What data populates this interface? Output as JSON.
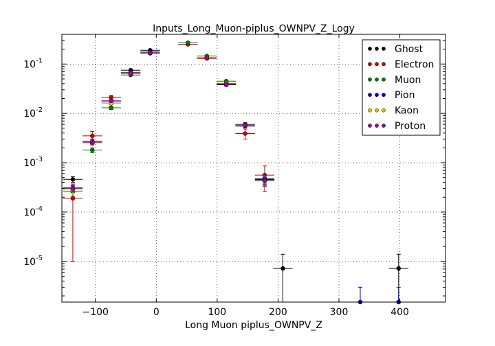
{
  "chart_data": {
    "type": "scatter",
    "title": "Inputs_Long_Muon-piplus_OWNPV_Z_Logy",
    "xlabel": "Long Muon piplus_OWNPV_Z",
    "ylabel": "",
    "xlim": [
      -155,
      475
    ],
    "ylim": [
      1.5e-06,
      0.4
    ],
    "yscale": "log",
    "grid": true,
    "legend_position": "top-right",
    "x_ticks": [
      -100,
      0,
      100,
      200,
      300,
      400
    ],
    "x_tick_labels": [
      "−100",
      "0",
      "100",
      "200",
      "300",
      "400"
    ],
    "y_ticks": [
      {
        "value": 0.1,
        "base": "10",
        "exp": "-1"
      },
      {
        "value": 0.01,
        "base": "10",
        "exp": "-2"
      },
      {
        "value": 0.001,
        "base": "10",
        "exp": "-3"
      },
      {
        "value": 0.0001,
        "base": "10",
        "exp": "-4"
      },
      {
        "value": 1e-05,
        "base": "10",
        "exp": "-5"
      }
    ],
    "bin_half_width": 16,
    "series": [
      {
        "name": "Ghost",
        "color": "#000000",
        "points": [
          {
            "x": -137,
            "y": 0.00046,
            "yerr": 6e-05
          },
          {
            "x": -42,
            "y": 0.075,
            "yerr": 0.003
          },
          {
            "x": -10,
            "y": 0.19,
            "yerr": 0.005
          },
          {
            "x": 115,
            "y": 0.038,
            "yerr": 0.002
          },
          {
            "x": 178,
            "y": 0.00045,
            "yerr": 0.0001
          },
          {
            "x": 208,
            "y": 7.2e-06,
            "yerr": 6.8e-06
          },
          {
            "x": 398,
            "y": 7.2e-06,
            "yerr": 6.8e-06
          }
        ]
      },
      {
        "name": "Electron",
        "color": "#cc0000",
        "points": [
          {
            "x": -137,
            "y": 0.00019,
            "yerr": 0.00018
          },
          {
            "x": -105,
            "y": 0.0035,
            "yerr": 0.0008
          },
          {
            "x": -74,
            "y": 0.021,
            "yerr": 0.002
          },
          {
            "x": 52,
            "y": 0.25,
            "yerr": 0.01
          },
          {
            "x": 83,
            "y": 0.13,
            "yerr": 0.006
          },
          {
            "x": 146,
            "y": 0.0039,
            "yerr": 0.0009
          },
          {
            "x": 178,
            "y": 0.00056,
            "yerr": 0.0003
          }
        ]
      },
      {
        "name": "Muon",
        "color": "#007a00",
        "points": [
          {
            "x": -137,
            "y": 0.00026,
            "yerr": 5e-05
          },
          {
            "x": -105,
            "y": 0.0018,
            "yerr": 0.0002
          },
          {
            "x": -74,
            "y": 0.013,
            "yerr": 0.001
          },
          {
            "x": -42,
            "y": 0.06,
            "yerr": 0.002
          },
          {
            "x": -10,
            "y": 0.165,
            "yerr": 0.004
          },
          {
            "x": 52,
            "y": 0.27,
            "yerr": 0.005
          },
          {
            "x": 83,
            "y": 0.145,
            "yerr": 0.003
          },
          {
            "x": 115,
            "y": 0.045,
            "yerr": 0.002
          },
          {
            "x": 146,
            "y": 0.006,
            "yerr": 0.0005
          },
          {
            "x": 178,
            "y": 0.00048,
            "yerr": 0.0001
          }
        ]
      },
      {
        "name": "Pion",
        "color": "#0000cc",
        "points": [
          {
            "x": -137,
            "y": 0.00031,
            "yerr": 4e-05
          },
          {
            "x": -105,
            "y": 0.0027,
            "yerr": 0.0003
          },
          {
            "x": -74,
            "y": 0.017,
            "yerr": 0.001
          },
          {
            "x": -42,
            "y": 0.068,
            "yerr": 0.002
          },
          {
            "x": -10,
            "y": 0.175,
            "yerr": 0.004
          },
          {
            "x": 83,
            "y": 0.135,
            "yerr": 0.003
          },
          {
            "x": 115,
            "y": 0.04,
            "yerr": 0.002
          },
          {
            "x": 146,
            "y": 0.0055,
            "yerr": 0.0004
          },
          {
            "x": 178,
            "y": 0.00046,
            "yerr": 0.0001
          },
          {
            "x": 335,
            "y": 1.5e-06,
            "yerr": 1.5e-06
          },
          {
            "x": 398,
            "y": 1.5e-06,
            "yerr": 1.5e-06
          }
        ]
      },
      {
        "name": "Kaon",
        "color": "#e6c200",
        "points": [
          {
            "x": -137,
            "y": 0.00028,
            "yerr": 4e-05
          },
          {
            "x": -105,
            "y": 0.0025,
            "yerr": 0.0003
          },
          {
            "x": -74,
            "y": 0.016,
            "yerr": 0.001
          },
          {
            "x": -42,
            "y": 0.066,
            "yerr": 0.002
          },
          {
            "x": -10,
            "y": 0.172,
            "yerr": 0.004
          },
          {
            "x": 83,
            "y": 0.137,
            "yerr": 0.003
          },
          {
            "x": 115,
            "y": 0.041,
            "yerr": 0.002
          },
          {
            "x": 146,
            "y": 0.0057,
            "yerr": 0.0004
          },
          {
            "x": 178,
            "y": 0.00044,
            "yerr": 0.0001
          }
        ]
      },
      {
        "name": "Proton",
        "color": "#a000a0",
        "points": [
          {
            "x": -137,
            "y": 0.0003,
            "yerr": 4e-05
          },
          {
            "x": -105,
            "y": 0.0026,
            "yerr": 0.0003
          },
          {
            "x": -74,
            "y": 0.018,
            "yerr": 0.001
          },
          {
            "x": -42,
            "y": 0.064,
            "yerr": 0.002
          },
          {
            "x": -10,
            "y": 0.17,
            "yerr": 0.004
          },
          {
            "x": 83,
            "y": 0.132,
            "yerr": 0.003
          },
          {
            "x": 115,
            "y": 0.039,
            "yerr": 0.002
          },
          {
            "x": 146,
            "y": 0.0058,
            "yerr": 0.0004
          },
          {
            "x": 178,
            "y": 0.00043,
            "yerr": 0.0001
          }
        ]
      }
    ]
  }
}
